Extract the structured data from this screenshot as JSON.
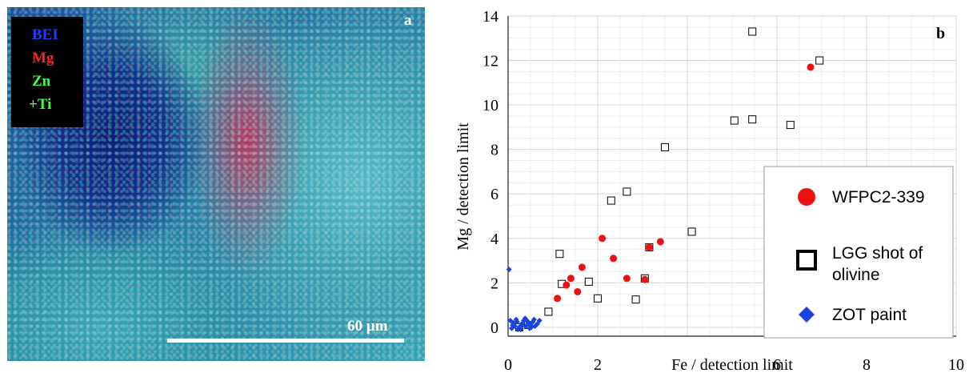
{
  "panel_a": {
    "label": "a",
    "legend": [
      {
        "text": "BEI",
        "color": "#1f3cff"
      },
      {
        "text": "Mg",
        "color": "#ff2020"
      },
      {
        "text": "Zn",
        "color": "#40ff40"
      },
      {
        "text": "+Ti",
        "color": "#40ff40"
      }
    ],
    "scale_label": "60 µm"
  },
  "chart_data": {
    "type": "scatter",
    "label": "b",
    "xlabel": "Fe / detection limit",
    "ylabel": "Mg / detection limit",
    "xlim": [
      0,
      10
    ],
    "ylim": [
      -0.4,
      14
    ],
    "x_ticks": [
      "0",
      "2",
      "4",
      "6",
      "8",
      "10"
    ],
    "x_tick_values": [
      0,
      2,
      4,
      6,
      8,
      10
    ],
    "y_ticks": [
      "0",
      "2",
      "4",
      "6",
      "8",
      "10",
      "12",
      "14"
    ],
    "y_tick_values": [
      0,
      2,
      4,
      6,
      8,
      10,
      12,
      14
    ],
    "grid": true,
    "legend_position": "right",
    "series": [
      {
        "name": "WFPC2-339",
        "marker": "circle",
        "color": "#ee1111",
        "points": [
          [
            1.1,
            1.3
          ],
          [
            1.3,
            1.9
          ],
          [
            1.65,
            2.7
          ],
          [
            1.4,
            2.2
          ],
          [
            2.1,
            4.0
          ],
          [
            2.35,
            3.1
          ],
          [
            1.55,
            1.6
          ],
          [
            2.65,
            2.2
          ],
          [
            3.05,
            2.15
          ],
          [
            3.15,
            3.6
          ],
          [
            3.4,
            3.85
          ],
          [
            6.75,
            11.7
          ]
        ]
      },
      {
        "name": "LGG shot of olivine",
        "marker": "square",
        "color": "#000000",
        "points": [
          [
            0.25,
            0.0
          ],
          [
            0.45,
            0.1
          ],
          [
            0.9,
            0.7
          ],
          [
            1.15,
            3.3
          ],
          [
            1.2,
            1.95
          ],
          [
            1.8,
            2.05
          ],
          [
            2.0,
            1.3
          ],
          [
            2.3,
            5.7
          ],
          [
            2.65,
            6.1
          ],
          [
            2.85,
            1.25
          ],
          [
            3.05,
            2.2
          ],
          [
            3.15,
            3.6
          ],
          [
            3.5,
            8.1
          ],
          [
            4.1,
            4.3
          ],
          [
            5.05,
            9.3
          ],
          [
            5.45,
            9.35
          ],
          [
            5.45,
            13.3
          ],
          [
            6.3,
            9.1
          ],
          [
            6.95,
            12.0
          ]
        ]
      },
      {
        "name": "ZOT paint",
        "marker": "diamond",
        "color": "#1a44e0",
        "points": [
          [
            0.05,
            0.3
          ],
          [
            0.1,
            0.1
          ],
          [
            0.15,
            0.05
          ],
          [
            0.2,
            0.25
          ],
          [
            0.25,
            0.0
          ],
          [
            0.3,
            0.15
          ],
          [
            0.35,
            0.3
          ],
          [
            0.4,
            0.05
          ],
          [
            0.45,
            0.2
          ],
          [
            0.5,
            0.1
          ],
          [
            0.55,
            0.25
          ],
          [
            0.6,
            0.05
          ],
          [
            0.65,
            0.15
          ],
          [
            0.7,
            0.3
          ],
          [
            0.08,
            -0.05
          ],
          [
            0.18,
            0.35
          ],
          [
            0.28,
            -0.1
          ],
          [
            0.38,
            0.4
          ],
          [
            0.48,
            -0.05
          ],
          [
            0.58,
            0.35
          ],
          [
            0.12,
            0.2
          ],
          [
            0.22,
            -0.1
          ],
          [
            0.32,
            0.1
          ],
          [
            0.42,
            0.3
          ],
          [
            0.52,
            0.0
          ],
          [
            0.02,
            2.6
          ]
        ]
      }
    ]
  }
}
